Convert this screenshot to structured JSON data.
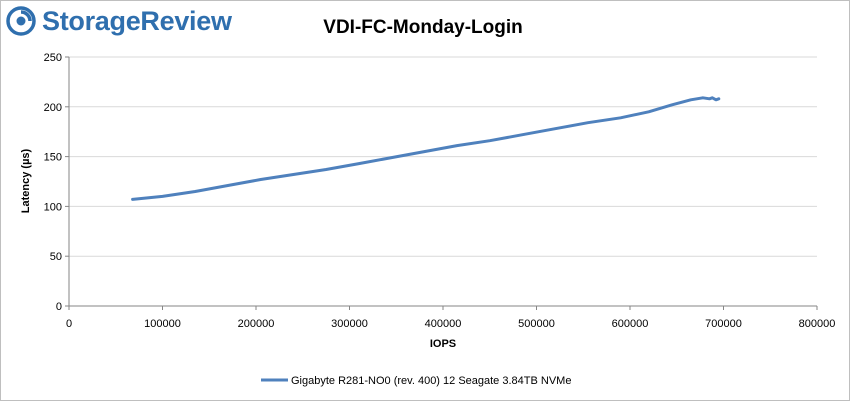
{
  "brand": {
    "name": "StorageReview",
    "color": "#2f6fae",
    "icon": "storagereview-logo-icon"
  },
  "chart_data": {
    "type": "line",
    "title": "VDI-FC-Monday-Login",
    "xlabel": "IOPS",
    "ylabel": "Latency (µs)",
    "xlim": [
      0,
      800000
    ],
    "ylim": [
      0,
      250
    ],
    "xticks": [
      0,
      100000,
      200000,
      300000,
      400000,
      500000,
      600000,
      700000,
      800000
    ],
    "yticks": [
      0,
      50,
      100,
      150,
      200,
      250
    ],
    "grid": "horizontal",
    "legend": "bottom",
    "series": [
      {
        "name": "Gigabyte R281-NO0 (rev. 400) 12 Seagate 3.84TB NVMe",
        "color": "#4f81bd",
        "x": [
          68000,
          100000,
          135000,
          170000,
          205000,
          240000,
          275000,
          310000,
          345000,
          380000,
          415000,
          450000,
          485000,
          520000,
          555000,
          590000,
          620000,
          645000,
          665000,
          678000,
          685000,
          688000,
          692000,
          695000
        ],
        "y": [
          107,
          110,
          115,
          121,
          127,
          132,
          137,
          143,
          149,
          155,
          161,
          166,
          172,
          178,
          184,
          189,
          195,
          202,
          207,
          209,
          208,
          209,
          207,
          208
        ]
      }
    ]
  }
}
